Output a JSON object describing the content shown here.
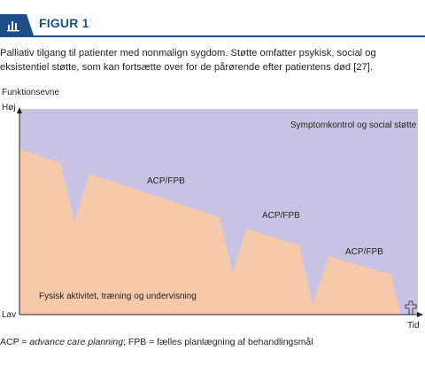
{
  "figure": {
    "title": "FIGUR 1",
    "caption": "Palliativ tilgang til patienter med nonmalign sygdom. Støtte omfatter psykisk, social og eksistentiel støtte, som kan fortsætte over for de pårørende efter patientens død [27].",
    "icon": "bar-chart-icon",
    "accent_color": "#1d4e89"
  },
  "diagram": {
    "y_axis_label": "Funktionsevne",
    "y_high_label": "Høj",
    "y_low_label": "Lav",
    "x_axis_label": "Tid",
    "upper_region_label": "Symptomkontrol og social støtte",
    "lower_region_label": "Fysisk aktivitet, træning og undervisning",
    "annotations": [
      "ACP/FPB",
      "ACP/FPB",
      "ACP/FPB"
    ],
    "death_symbol": "cross-icon",
    "upper_region_color": "#c9c3e3",
    "lower_region_color": "#f6c9ac"
  },
  "footnote": {
    "acp_abbr": "ACP = ",
    "acp_term": "advance care planning",
    "fpb_text": "; FPB = fælles planlægning af behandlingsmål"
  }
}
